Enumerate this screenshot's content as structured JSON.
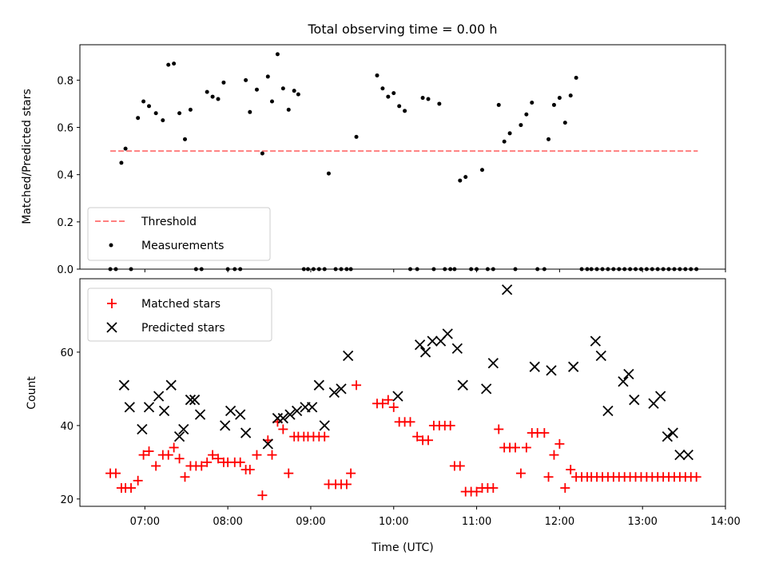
{
  "chart_data": [
    {
      "type": "scatter",
      "title": "Total observing time = 0.00 h",
      "ylabel": "Matched/Predicted stars",
      "ylim": [
        0,
        0.95
      ],
      "xlim": [
        "06:13",
        "14:00"
      ],
      "yticks": [
        "0.0",
        "0.2",
        "0.4",
        "0.6",
        "0.8"
      ],
      "legend_position": "lower-left",
      "threshold": {
        "name": "Threshold",
        "value": 0.5,
        "x_range": [
          "06:35",
          "13:40"
        ],
        "color": "#ff7f7f",
        "style": "dashed"
      },
      "series": [
        {
          "name": "Measurements",
          "color": "#000000",
          "x": [
            "06:35",
            "06:39",
            "06:43",
            "06:46",
            "06:50",
            "06:55",
            "06:59",
            "07:03",
            "07:08",
            "07:13",
            "07:17",
            "07:21",
            "07:25",
            "07:29",
            "07:33",
            "07:37",
            "07:41",
            "07:45",
            "07:49",
            "07:53",
            "07:57",
            "08:00",
            "08:05",
            "08:09",
            "08:13",
            "08:16",
            "08:21",
            "08:25",
            "08:29",
            "08:32",
            "08:36",
            "08:40",
            "08:44",
            "08:48",
            "08:51",
            "08:55",
            "08:58",
            "09:02",
            "09:06",
            "09:10",
            "09:13",
            "09:18",
            "09:22",
            "09:26",
            "09:29",
            "09:33",
            "09:48",
            "09:52",
            "09:56",
            "10:00",
            "10:04",
            "10:08",
            "10:12",
            "10:17",
            "10:21",
            "10:25",
            "10:29",
            "10:33",
            "10:37",
            "10:41",
            "10:44",
            "10:48",
            "10:52",
            "10:56",
            "11:00",
            "11:04",
            "11:08",
            "11:12",
            "11:16",
            "11:20",
            "11:24",
            "11:28",
            "11:32",
            "11:36",
            "11:40",
            "11:44",
            "11:49",
            "11:52",
            "11:56",
            "12:00",
            "12:04",
            "12:08",
            "12:12",
            "12:16",
            "12:20",
            "12:23",
            "12:27",
            "12:31",
            "12:35",
            "12:39",
            "12:43",
            "12:47",
            "12:51",
            "12:55",
            "12:59",
            "13:03",
            "13:07",
            "13:11",
            "13:15",
            "13:19",
            "13:23",
            "13:27",
            "13:31",
            "13:35",
            "13:39"
          ],
          "y": [
            0,
            0,
            0.45,
            0.51,
            0,
            0.64,
            0.71,
            0.69,
            0.66,
            0.63,
            0.865,
            0.87,
            0.66,
            0.55,
            0.675,
            0,
            0,
            0.75,
            0.73,
            0.72,
            0.79,
            0,
            0,
            0,
            0.8,
            0.665,
            0.76,
            0.49,
            0.815,
            0.71,
            0.91,
            0.765,
            0.675,
            0.755,
            0.74,
            0,
            0,
            0,
            0,
            0,
            0.405,
            0,
            0,
            0,
            0,
            0.56,
            0.82,
            0.765,
            0.73,
            0.745,
            0.69,
            0.67,
            0,
            0,
            0.725,
            0.72,
            0,
            0.7,
            0,
            0,
            0,
            0.375,
            0.39,
            0,
            0,
            0.42,
            0,
            0,
            0.695,
            0.54,
            0.575,
            0,
            0.61,
            0.655,
            0.705,
            0,
            0,
            0.55,
            0.695,
            0.725,
            0.62,
            0.735,
            0.81,
            0,
            0,
            0,
            0,
            0,
            0,
            0,
            0,
            0,
            0,
            0,
            0,
            0,
            0,
            0,
            0,
            0,
            0,
            0,
            0,
            0,
            0
          ]
        }
      ]
    },
    {
      "type": "scatter",
      "xlabel": "Time (UTC)",
      "ylabel": "Count",
      "ylim": [
        18,
        80
      ],
      "xlim": [
        "06:13",
        "14:00"
      ],
      "xticks": [
        "07:00",
        "08:00",
        "09:00",
        "10:00",
        "11:00",
        "12:00",
        "13:00",
        "14:00"
      ],
      "yticks": [
        "20",
        "40",
        "60"
      ],
      "legend_position": "upper-left",
      "series": [
        {
          "name": "Matched stars",
          "color": "#ff0000",
          "marker": "+",
          "x": [
            "06:35",
            "06:39",
            "06:43",
            "06:46",
            "06:50",
            "06:55",
            "06:59",
            "07:03",
            "07:08",
            "07:13",
            "07:17",
            "07:21",
            "07:25",
            "07:29",
            "07:33",
            "07:37",
            "07:41",
            "07:45",
            "07:49",
            "07:53",
            "07:57",
            "08:00",
            "08:05",
            "08:09",
            "08:13",
            "08:16",
            "08:21",
            "08:25",
            "08:29",
            "08:32",
            "08:36",
            "08:40",
            "08:44",
            "08:48",
            "08:51",
            "08:55",
            "08:58",
            "09:02",
            "09:06",
            "09:10",
            "09:13",
            "09:18",
            "09:22",
            "09:26",
            "09:29",
            "09:33",
            "09:48",
            "09:52",
            "09:56",
            "10:00",
            "10:04",
            "10:08",
            "10:12",
            "10:17",
            "10:21",
            "10:25",
            "10:29",
            "10:33",
            "10:37",
            "10:41",
            "10:44",
            "10:48",
            "10:52",
            "10:56",
            "11:00",
            "11:04",
            "11:08",
            "11:12",
            "11:16",
            "11:20",
            "11:24",
            "11:28",
            "11:32",
            "11:36",
            "11:40",
            "11:44",
            "11:49",
            "11:52",
            "11:56",
            "12:00",
            "12:04",
            "12:08",
            "12:12",
            "12:16",
            "12:20",
            "12:23",
            "12:27",
            "12:31",
            "12:35",
            "12:39",
            "12:43",
            "12:47",
            "12:51",
            "12:55",
            "12:59",
            "13:03",
            "13:07",
            "13:11",
            "13:15",
            "13:19",
            "13:23",
            "13:27",
            "13:31",
            "13:35",
            "13:39"
          ],
          "y": [
            27,
            27,
            23,
            23,
            23,
            25,
            32,
            33,
            29,
            32,
            32,
            34,
            31,
            26,
            29,
            29,
            29,
            30,
            32,
            31,
            30,
            30,
            30,
            30,
            28,
            28,
            32,
            21,
            36,
            32,
            41,
            39,
            27,
            37,
            37,
            37,
            37,
            37,
            37,
            37,
            24,
            24,
            24,
            24,
            27,
            51,
            46,
            46,
            47,
            45,
            41,
            41,
            41,
            37,
            36,
            36,
            40,
            40,
            40,
            40,
            29,
            29,
            22,
            22,
            22,
            23,
            23,
            23,
            39,
            34,
            34,
            34,
            27,
            34,
            38,
            38,
            38,
            26,
            32,
            35,
            23,
            28,
            26,
            26,
            26,
            26,
            26,
            26,
            26,
            26,
            26,
            26,
            26,
            26,
            26,
            26,
            26,
            26,
            26,
            26,
            26,
            26,
            26,
            26,
            26
          ]
        },
        {
          "name": "Predicted stars",
          "color": "#000000",
          "marker": "x",
          "x": [
            "06:45",
            "06:49",
            "06:58",
            "07:03",
            "07:10",
            "07:14",
            "07:19",
            "07:25",
            "07:28",
            "07:33",
            "07:36",
            "07:40",
            "07:58",
            "08:02",
            "08:09",
            "08:13",
            "08:29",
            "08:36",
            "08:40",
            "08:45",
            "08:50",
            "08:56",
            "09:01",
            "09:06",
            "09:10",
            "09:17",
            "09:22",
            "09:27",
            "10:03",
            "10:19",
            "10:23",
            "10:28",
            "10:34",
            "10:39",
            "10:46",
            "10:50",
            "11:07",
            "11:12",
            "11:22",
            "11:42",
            "11:54",
            "12:10",
            "12:26",
            "12:30",
            "12:35",
            "12:46",
            "12:50",
            "12:54",
            "13:08",
            "13:13",
            "13:18",
            "13:22",
            "13:27",
            "13:33"
          ],
          "y": [
            51,
            45,
            39,
            45,
            48,
            44,
            51,
            37,
            39,
            47,
            47,
            43,
            40,
            44,
            43,
            38,
            35,
            42,
            42,
            43,
            44,
            45,
            45,
            51,
            40,
            49,
            50,
            59,
            48,
            62,
            60,
            63,
            63,
            65,
            61,
            51,
            50,
            57,
            77,
            56,
            55,
            56,
            63,
            59,
            44,
            52,
            54,
            47,
            46,
            48,
            37,
            38,
            32,
            32
          ]
        }
      ]
    }
  ]
}
